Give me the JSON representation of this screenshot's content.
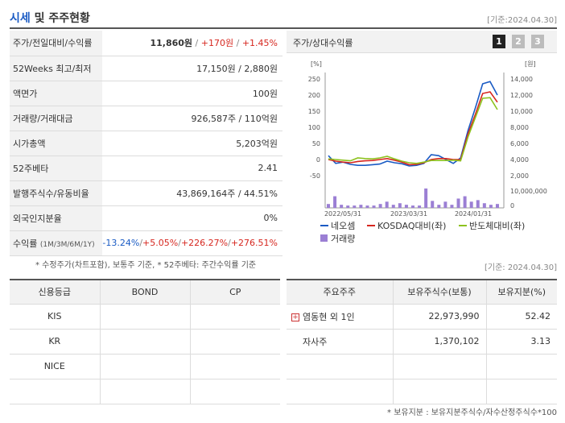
{
  "header": {
    "title_a": "시세",
    "title_b": " 및 주주현황",
    "date": "[기준:2024.04.30]"
  },
  "info_rows": [
    {
      "label": "주가/전일대비/수익률",
      "price": "11,860원",
      "change": "+170원",
      "rate": "+1.45%"
    },
    {
      "label": "52Weeks 최고/최저",
      "value": "17,150원 / 2,880원"
    },
    {
      "label": "액면가",
      "value": "100원"
    },
    {
      "label": "거래량/거래대금",
      "value": "926,587주 / 110억원"
    },
    {
      "label": "시가총액",
      "value": "5,203억원"
    },
    {
      "label": "52주베타",
      "value": "2.41"
    },
    {
      "label": "발행주식수/유동비율",
      "value": "43,869,164주 / 44.51%"
    },
    {
      "label": "외국인지분율",
      "value": "0%"
    },
    {
      "label": "수익률",
      "label_sub": "(1M/3M/6M/1Y)",
      "r1": "-13.24%",
      "r2": "+5.05%",
      "r3": "+226.27%",
      "r4": "+276.51%"
    }
  ],
  "note1": "* 수정주가(차트포함), 보통주 기준, * 52주베타: 주간수익률 기준",
  "chart_panel": {
    "title": "주가/상대수익률",
    "pages": [
      "1",
      "2",
      "3"
    ]
  },
  "chart_data": {
    "type": "line",
    "left_unit": "[%]",
    "right_unit": "[원]",
    "left_ticks": [
      "250",
      "200",
      "150",
      "100",
      "50",
      "0",
      "-50"
    ],
    "right_ticks": [
      "14,000",
      "12,000",
      "10,000",
      "8,000",
      "6,000",
      "4,000",
      "2,000"
    ],
    "volume_ticks": [
      "10,000,000",
      "0"
    ],
    "x_labels": [
      "2022/05/31",
      "2023/03/31",
      "2024/01/31"
    ],
    "ylim_left": [
      -50,
      250
    ],
    "series": [
      {
        "name": "네오셈",
        "color": "#1a5bc4",
        "values": [
          12,
          -12,
          -8,
          -15,
          -18,
          -18,
          -16,
          -14,
          -5,
          -10,
          -13,
          -20,
          -18,
          -12,
          15,
          12,
          0,
          -12,
          5,
          90,
          160,
          235,
          242,
          200
        ]
      },
      {
        "name": "KOSDAQ대비(좌)",
        "color": "#d6271f",
        "values": [
          0,
          -5,
          -8,
          -10,
          -6,
          -4,
          -3,
          0,
          3,
          -2,
          -8,
          -16,
          -15,
          -10,
          0,
          3,
          3,
          0,
          0,
          80,
          140,
          205,
          210,
          178
        ]
      },
      {
        "name": "반도체대비(좌)",
        "color": "#8dc21f",
        "values": [
          2,
          0,
          -2,
          -4,
          5,
          3,
          2,
          5,
          10,
          2,
          -5,
          -10,
          -12,
          -8,
          -3,
          -3,
          -3,
          -2,
          -4,
          70,
          130,
          190,
          192,
          155
        ]
      }
    ],
    "volume": {
      "name": "거래량",
      "color": "#9b7fd4",
      "values": [
        0.5,
        1.5,
        0.4,
        0.3,
        0.3,
        0.4,
        0.3,
        0.3,
        0.5,
        0.8,
        0.4,
        0.6,
        0.4,
        0.3,
        0.3,
        2.5,
        0.9,
        0.4,
        0.8,
        0.4,
        1.2,
        1.5,
        0.8,
        1.0,
        0.6,
        0.4,
        0.5
      ]
    }
  },
  "credit": {
    "headers": [
      "신용등급",
      "BOND",
      "CP"
    ],
    "rows": [
      {
        "agency": "KIS"
      },
      {
        "agency": "KR"
      },
      {
        "agency": "NICE"
      },
      {
        "agency": ""
      }
    ]
  },
  "date2": "[기준: 2024.04.30]",
  "holders": {
    "headers": [
      "주요주주",
      "보유주식수(보통)",
      "보유지분(%)"
    ],
    "rows": [
      {
        "name": "염동현 외 1인",
        "shares": "22,973,990",
        "pct": "52.42"
      },
      {
        "name": "자사주",
        "shares": "1,370,102",
        "pct": "3.13"
      },
      {
        "name": "",
        "shares": "",
        "pct": ""
      },
      {
        "name": "",
        "shares": "",
        "pct": ""
      }
    ]
  },
  "note2": "* 보유지분 : 보유지분주식수/자수산정주식수*100"
}
